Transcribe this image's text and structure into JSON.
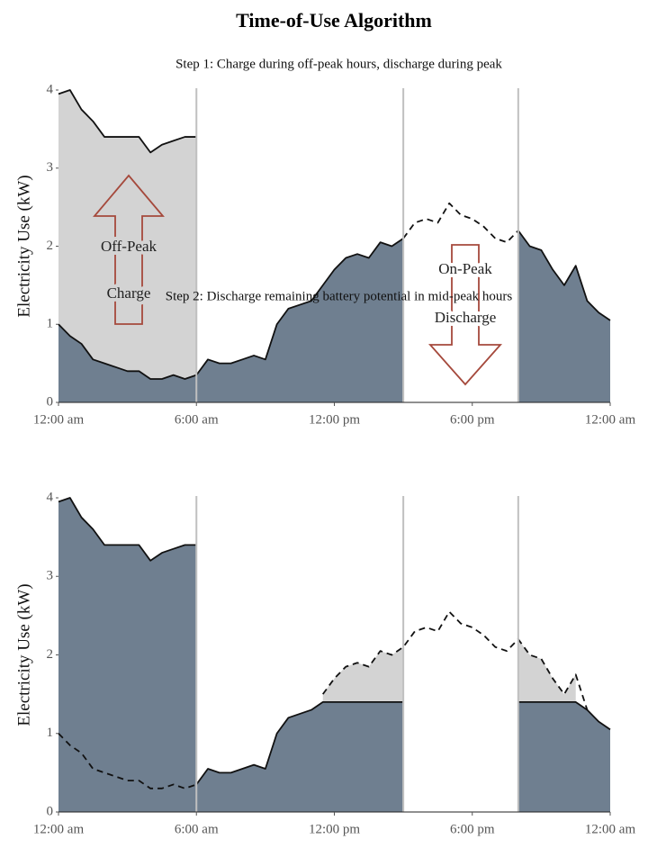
{
  "title": "Time-of-Use Algorithm",
  "chart_data": [
    {
      "type": "area",
      "title": "Step 1: Charge during off-peak hours, discharge during peak",
      "ylabel": "Electricity Use (kW)",
      "xlim": [
        0,
        24
      ],
      "ylim": [
        0,
        4
      ],
      "xticks": [
        {
          "value": 0,
          "label": "12:00 am"
        },
        {
          "value": 6,
          "label": "6:00 am"
        },
        {
          "value": 12,
          "label": "12:00 pm"
        },
        {
          "value": 18,
          "label": "6:00 pm"
        },
        {
          "value": 24,
          "label": "12:00 am"
        }
      ],
      "yticks": [
        0,
        1,
        2,
        3,
        4
      ],
      "vlines": [
        6,
        15,
        20
      ],
      "annotations": [
        "Off-Peak",
        "Charge",
        "On-Peak",
        "Discharge"
      ],
      "x": [
        0,
        0.5,
        1,
        1.5,
        2,
        2.5,
        3,
        3.5,
        4,
        4.5,
        5,
        5.5,
        6,
        6.5,
        7,
        7.5,
        8,
        8.5,
        9,
        9.5,
        10,
        10.5,
        11,
        11.5,
        12,
        12.5,
        13,
        13.5,
        14,
        14.5,
        15,
        15.5,
        16,
        16.5,
        17,
        17.5,
        18,
        18.5,
        19,
        19.5,
        20,
        20.5,
        21,
        21.5,
        22,
        22.5,
        23,
        23.5,
        24
      ],
      "series": [
        {
          "fill": "#d3d3d3",
          "line": "solid",
          "values": [
            3.95,
            4.0,
            3.75,
            3.6,
            3.4,
            3.4,
            3.4,
            3.4,
            3.2,
            3.3,
            3.35,
            3.4,
            3.4,
            null,
            null,
            null,
            null,
            null,
            null,
            null,
            null,
            null,
            null,
            null,
            null,
            null,
            null,
            null,
            null,
            null,
            null,
            null,
            null,
            null,
            null,
            null,
            null,
            null,
            null,
            null,
            null,
            null,
            null,
            null,
            null,
            null,
            null,
            null,
            null
          ]
        },
        {
          "fill": "#6f7f90",
          "line": "solid",
          "values": [
            1.0,
            0.85,
            0.75,
            0.55,
            0.5,
            0.45,
            0.4,
            0.4,
            0.3,
            0.3,
            0.35,
            0.3,
            0.35,
            0.55,
            0.5,
            0.5,
            0.55,
            0.6,
            0.55,
            1.0,
            1.2,
            1.25,
            1.3,
            1.5,
            1.7,
            1.85,
            1.9,
            1.85,
            2.05,
            2.0,
            2.1,
            null,
            null,
            null,
            null,
            null,
            null,
            null,
            null,
            null,
            2.2,
            2.0,
            1.95,
            1.7,
            1.5,
            1.75,
            1.3,
            1.15,
            1.05
          ]
        },
        {
          "fill": null,
          "line": "dashed",
          "values": [
            null,
            null,
            null,
            null,
            null,
            null,
            null,
            null,
            null,
            null,
            null,
            null,
            null,
            null,
            null,
            null,
            null,
            null,
            null,
            null,
            null,
            null,
            null,
            null,
            null,
            null,
            null,
            null,
            null,
            null,
            2.1,
            2.3,
            2.35,
            2.3,
            2.55,
            2.4,
            2.35,
            2.25,
            2.1,
            2.05,
            2.2,
            null,
            null,
            null,
            null,
            null,
            null,
            null,
            null
          ]
        }
      ]
    },
    {
      "type": "area",
      "title": "Step 2: Discharge remaining battery potential in mid-peak hours",
      "ylabel": "Electricity Use (kW)",
      "xlim": [
        0,
        24
      ],
      "ylim": [
        0,
        4
      ],
      "xticks": [
        {
          "value": 0,
          "label": "12:00 am"
        },
        {
          "value": 6,
          "label": "6:00 am"
        },
        {
          "value": 12,
          "label": "12:00 pm"
        },
        {
          "value": 18,
          "label": "6:00 pm"
        },
        {
          "value": 24,
          "label": "12:00 am"
        }
      ],
      "yticks": [
        0,
        1,
        2,
        3,
        4
      ],
      "vlines": [
        6,
        15,
        20
      ],
      "x": [
        0,
        0.5,
        1,
        1.5,
        2,
        2.5,
        3,
        3.5,
        4,
        4.5,
        5,
        5.5,
        6,
        6.5,
        7,
        7.5,
        8,
        8.5,
        9,
        9.5,
        10,
        10.5,
        11,
        11.5,
        12,
        12.5,
        13,
        13.5,
        14,
        14.5,
        15,
        15.5,
        16,
        16.5,
        17,
        17.5,
        18,
        18.5,
        19,
        19.5,
        20,
        20.5,
        21,
        21.5,
        22,
        22.5,
        23,
        23.5,
        24
      ],
      "series": [
        {
          "fill": "#d3d3d3",
          "line": "none",
          "values": [
            null,
            null,
            null,
            null,
            null,
            null,
            null,
            null,
            null,
            null,
            null,
            null,
            null,
            null,
            null,
            null,
            null,
            null,
            null,
            null,
            null,
            null,
            null,
            1.5,
            1.7,
            1.85,
            1.9,
            1.85,
            2.05,
            2.0,
            2.1,
            null,
            null,
            null,
            null,
            null,
            null,
            null,
            null,
            null,
            2.2,
            2.0,
            1.95,
            1.7,
            1.5,
            1.75,
            null,
            null,
            null
          ]
        },
        {
          "fill": "#6f7f90",
          "line": "solid",
          "values": [
            null,
            null,
            null,
            null,
            null,
            null,
            null,
            null,
            null,
            null,
            null,
            null,
            0.35,
            0.55,
            0.5,
            0.5,
            0.55,
            0.6,
            0.55,
            1.0,
            1.2,
            1.25,
            1.3,
            1.4,
            1.4,
            1.4,
            1.4,
            1.4,
            1.4,
            1.4,
            1.4,
            null,
            null,
            null,
            null,
            null,
            null,
            null,
            null,
            null,
            1.4,
            1.4,
            1.4,
            1.4,
            1.4,
            1.4,
            1.3,
            1.15,
            1.05
          ]
        },
        {
          "fill": "#6f7f90",
          "line": "solid",
          "values": [
            3.95,
            4.0,
            3.75,
            3.6,
            3.4,
            3.4,
            3.4,
            3.4,
            3.2,
            3.3,
            3.35,
            3.4,
            3.4,
            null,
            null,
            null,
            null,
            null,
            null,
            null,
            null,
            null,
            null,
            null,
            null,
            null,
            null,
            null,
            null,
            null,
            null,
            null,
            null,
            null,
            null,
            null,
            null,
            null,
            null,
            null,
            null,
            null,
            null,
            null,
            null,
            null,
            null,
            null,
            null
          ]
        },
        {
          "fill": null,
          "line": "dashed",
          "values": [
            1.0,
            0.85,
            0.75,
            0.55,
            0.5,
            0.45,
            0.4,
            0.4,
            0.3,
            0.3,
            0.35,
            0.3,
            0.35,
            null,
            null,
            null,
            null,
            null,
            null,
            null,
            null,
            null,
            null,
            1.5,
            1.7,
            1.85,
            1.9,
            1.85,
            2.05,
            2.0,
            2.1,
            2.3,
            2.35,
            2.3,
            2.55,
            2.4,
            2.35,
            2.25,
            2.1,
            2.05,
            2.2,
            2.0,
            1.95,
            1.7,
            1.5,
            1.75,
            1.3,
            null,
            null
          ]
        }
      ]
    }
  ]
}
